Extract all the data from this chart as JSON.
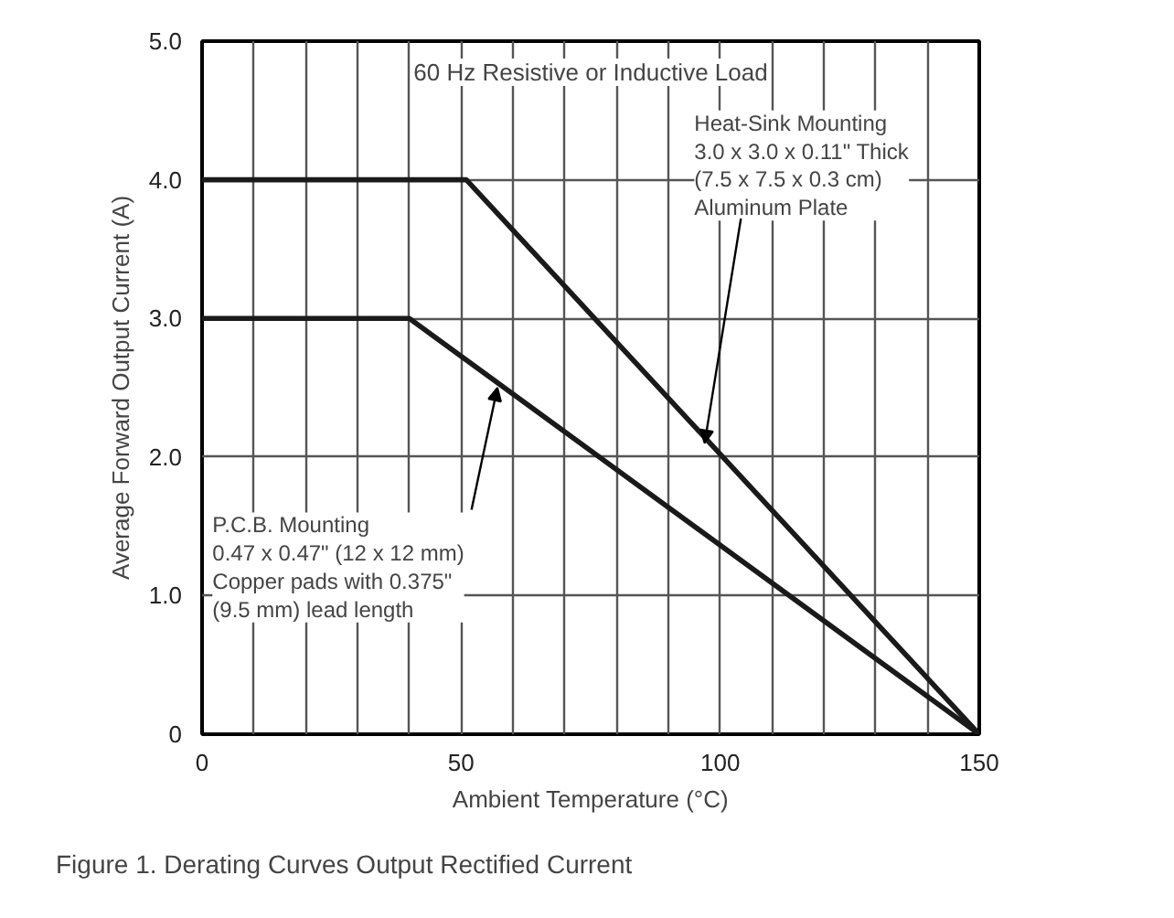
{
  "chart_data": {
    "type": "line",
    "xlabel": "Ambient Temperature (°C)",
    "ylabel": "Average Forward Output Current (A)",
    "xlim": [
      0,
      150
    ],
    "ylim": [
      0,
      5
    ],
    "xticks": [
      0,
      {
        "value": 10,
        "label": null
      },
      {
        "value": 20,
        "label": null
      },
      {
        "value": 30,
        "label": null
      },
      {
        "value": 40,
        "label": null
      },
      50,
      {
        "value": 60,
        "label": null
      },
      {
        "value": 70,
        "label": null
      },
      {
        "value": 80,
        "label": null
      },
      {
        "value": 90,
        "label": null
      },
      100,
      {
        "value": 110,
        "label": null
      },
      {
        "value": 120,
        "label": null
      },
      {
        "value": 130,
        "label": null
      },
      {
        "value": 140,
        "label": null
      },
      150
    ],
    "yticks": [
      0,
      {
        "value": 1,
        "label": "1.0"
      },
      {
        "value": 2,
        "label": "2.0"
      },
      {
        "value": 3,
        "label": "3.0"
      },
      {
        "value": 4,
        "label": "4.0"
      },
      {
        "value": 5,
        "label": "5.0"
      }
    ],
    "grid": true,
    "marker": "none",
    "line_style": "solid",
    "series": [
      {
        "color": "#1a1a1a",
        "x": [
          0,
          51,
          150
        ],
        "values": [
          4,
          4,
          0
        ]
      },
      {
        "color": "#1a1a1a",
        "x": [
          0,
          40,
          150
        ],
        "values": [
          3,
          3,
          0
        ]
      }
    ],
    "annotations": [
      "60 Hz Resistive or Inductive Load",
      {
        "text": "Heat-Sink Mounting\n3.0 x 3.0 x 0.11\" Thick\n(7.5 x 7.5 x 0.3 cm)\nAluminum Plate",
        "x": 97,
        "y": 2.1
      },
      {
        "text": "P.C.B. Mounting\n0.47 x 0.47\" (12 x 12 mm)\nCopper pads with 0.375\"\n(9.5 mm) lead length",
        "x": 57,
        "y": 2.5
      },
      "Figure 1. Derating Curves Output Rectified Current"
    ]
  }
}
